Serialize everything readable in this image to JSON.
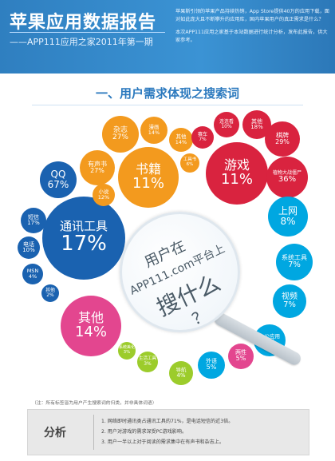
{
  "header": {
    "title": "苹果应用数据报告",
    "subtitle": "——APP111应用之家2011年第一期",
    "desc1": "苹果斯引领的苹果产品持续热销，App Store提供40万的应用下载，面对如此庞大且不断攀升的应用库，国内苹果用户的真正需求是什么？",
    "desc2": "本次APP111应用之家基于本站数据进行统计分析，发布此报告，供大家参考。"
  },
  "section_title": "一、用户需求体现之搜索词",
  "lens": {
    "line1": "用户在",
    "line2": "APP111.com平台上",
    "line3": "搜什么",
    "q": "？"
  },
  "bubbles": {
    "comm": {
      "label": "通讯工具",
      "value": "17%",
      "color": "#1a62b0"
    },
    "qq": {
      "label": "QQ",
      "value": "67%",
      "color": "#1a62b0"
    },
    "sms": {
      "label": "短信",
      "value": "17%",
      "color": "#1a62b0"
    },
    "phone": {
      "label": "电话",
      "value": "10%",
      "color": "#1a62b0"
    },
    "msn": {
      "label": "MSN",
      "value": "4%",
      "color": "#1a62b0"
    },
    "commother": {
      "label": "其他",
      "value": "2%",
      "color": "#1a62b0"
    },
    "books": {
      "label": "书籍",
      "value": "11%",
      "color": "#f39a1e"
    },
    "magazine": {
      "label": "杂志",
      "value": "27%",
      "color": "#f39a1e"
    },
    "comic": {
      "label": "漫画",
      "value": "14%",
      "color": "#f39a1e"
    },
    "audio": {
      "label": "有声书",
      "value": "27%",
      "color": "#f39a1e"
    },
    "novel": {
      "label": "小说",
      "value": "12%",
      "color": "#f39a1e"
    },
    "bookother": {
      "label": "其他",
      "value": "14%",
      "color": "#f39a1e"
    },
    "toolbook": {
      "label": "工具书",
      "value": "6%",
      "color": "#f39a1e"
    },
    "game": {
      "label": "游戏",
      "value": "11%",
      "color": "#d9233f"
    },
    "lianliankan": {
      "label": "连连看",
      "value": "10%",
      "color": "#d9233f"
    },
    "gameother": {
      "label": "其他",
      "value": "18%",
      "color": "#d9233f"
    },
    "racing": {
      "label": "赛车",
      "value": "7%",
      "color": "#d9233f"
    },
    "chess": {
      "label": "棋牌",
      "value": "29%",
      "color": "#d9233f"
    },
    "pvz": {
      "label": "植物大战僵尸",
      "value": "36%",
      "color": "#d9233f"
    },
    "internet": {
      "label": "上网",
      "value": "8%",
      "color": "#00a7e1"
    },
    "system": {
      "label": "系统工具",
      "value": "7%",
      "color": "#00a7e1"
    },
    "video": {
      "label": "视频",
      "value": "7%",
      "color": "#00a7e1"
    },
    "office": {
      "label": "办公应用",
      "value": "5%",
      "color": "#00a7e1"
    },
    "beauty": {
      "label": "两性",
      "value": "5%",
      "color": "#e3468f"
    },
    "foreign": {
      "label": "外语",
      "value": "5%",
      "color": "#00a7e1"
    },
    "nav": {
      "label": "导航",
      "value": "4%",
      "color": "#9ccc2b"
    },
    "lifetools": {
      "label": "生活工具",
      "value": "3%",
      "color": "#9ccc2b"
    },
    "sysbeauty": {
      "label": "系统美化",
      "value": "3%",
      "color": "#9ccc2b"
    },
    "others": {
      "label": "其他",
      "value": "14%",
      "color": "#e3468f"
    }
  },
  "note": "（注：所有标签皆为用户产生搜索词的归类，并非具体词语）",
  "analysis": {
    "title": "分析",
    "items": [
      "1. 网络即时通讯类占通讯工具的71%，是电话短信的近3倍。",
      "2. 用户对游戏的需求深受PC游戏影响。",
      "3. 用户一半以上对于阅读的需求集中在有声书和杂志上。"
    ]
  }
}
